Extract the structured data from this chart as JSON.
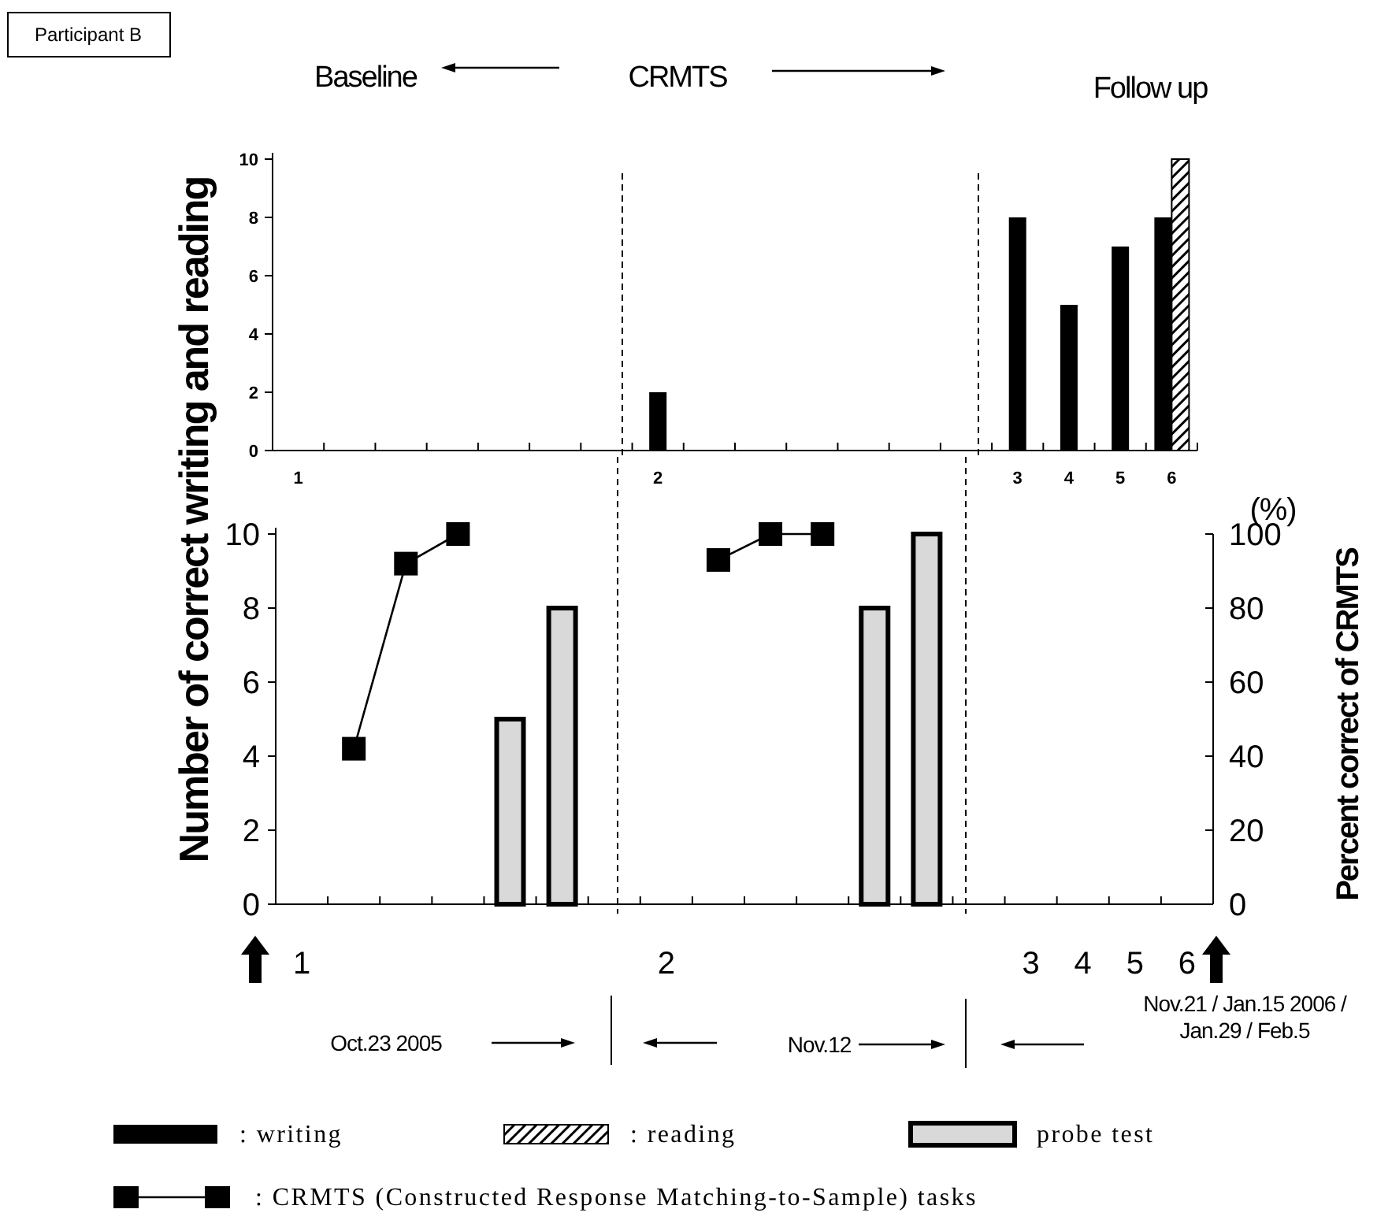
{
  "chart_data": [
    {
      "type": "bar",
      "title": "Participant B",
      "categories": [
        "1",
        null,
        null,
        null,
        null,
        null,
        null,
        "2",
        null,
        null,
        null,
        null,
        null,
        null,
        "3",
        "4",
        "5",
        "6"
      ],
      "ylim": [
        0,
        10
      ],
      "yticks": [
        0,
        2,
        4,
        6,
        8,
        10
      ],
      "series": [
        {
          "name": ": writing",
          "color": "#000000",
          "values": [
            null,
            null,
            null,
            null,
            null,
            null,
            null,
            2,
            null,
            null,
            null,
            null,
            null,
            null,
            8,
            5,
            7,
            8
          ]
        },
        {
          "name": ": reading",
          "color": "#000000",
          "values": [
            null,
            null,
            null,
            null,
            null,
            null,
            null,
            null,
            null,
            null,
            null,
            null,
            null,
            null,
            null,
            null,
            null,
            10
          ]
        }
      ],
      "annotations": [
        "Baseline",
        "CRMTS",
        "Follow up"
      ],
      "legend": "bottom"
    },
    {
      "type": "bar",
      "categories": [
        "1",
        null,
        null,
        null,
        null,
        null,
        null,
        "2",
        null,
        null,
        null,
        null,
        null,
        null,
        "3",
        "4",
        "5",
        "6"
      ],
      "ylim": [
        0,
        10
      ],
      "yticks": [
        0,
        2,
        4,
        6,
        8,
        10
      ],
      "y2lim": [
        0,
        100
      ],
      "y2ticks": [
        0,
        20,
        40,
        60,
        80,
        100
      ],
      "ylabel": "Number of correct writing and reading",
      "y2label": "Percent correct of CRMTS",
      "marker": "square",
      "series": [
        {
          "name": "probe test",
          "color": "#d9d9d9",
          "values": [
            null,
            null,
            null,
            null,
            5,
            8,
            null,
            null,
            null,
            null,
            null,
            8,
            10,
            null,
            null,
            null,
            null,
            null
          ]
        },
        {
          "name": ": CRMTS (Constructed Response Matching-to-Sample) tasks",
          "type": "line",
          "axis": "y2",
          "color": "#000000",
          "values": [
            null,
            42,
            92,
            100,
            null,
            null,
            null,
            null,
            93,
            100,
            100,
            null,
            null,
            null,
            null,
            null,
            null,
            null
          ]
        }
      ],
      "annotations": [
        "(%)",
        "Oct.23 2005",
        "Nov.12",
        "Nov.21 / Jan.15 2006 / Jan.29 / Feb.5"
      ],
      "legend": "bottom"
    }
  ]
}
